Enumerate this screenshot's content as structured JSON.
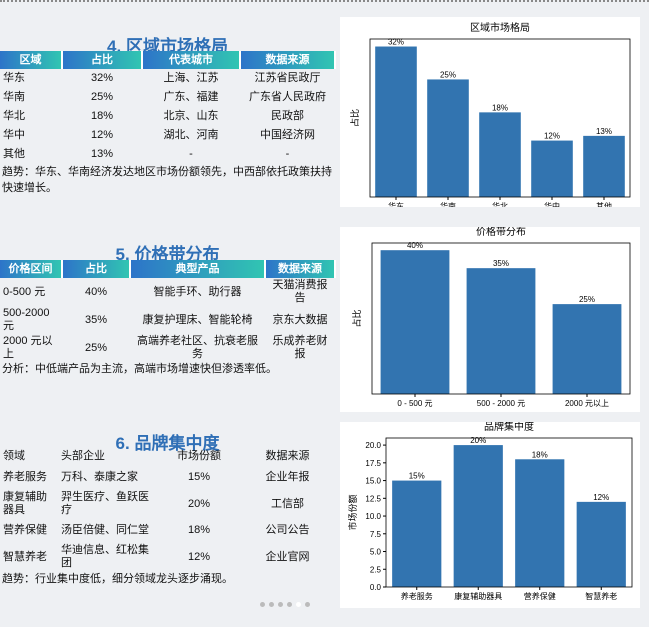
{
  "sections": [
    {
      "title": "4. 区域市场格局",
      "table": {
        "headers": [
          "区域",
          "占比",
          "代表城市",
          "数据来源"
        ],
        "rows": [
          [
            "华东",
            "32%",
            "上海、江苏",
            "江苏省民政厅"
          ],
          [
            "华南",
            "25%",
            "广东、福建",
            "广东省人民政府"
          ],
          [
            "华北",
            "18%",
            "北京、山东",
            "民政部"
          ],
          [
            "华中",
            "12%",
            "湖北、河南",
            "中国经济网"
          ],
          [
            "其他",
            "13%",
            "-",
            "-"
          ]
        ]
      },
      "note": "趋势：华东、华南经济发达地区市场份额领先，中西部依托政策扶持快速增长。",
      "chart": {
        "type": "bar",
        "title": "区域市场格局",
        "ylabel": "占比",
        "color": "#3274b0",
        "categories": [
          "华东",
          "华南",
          "华北",
          "华中",
          "其他"
        ],
        "values": [
          32,
          25,
          18,
          12,
          13
        ],
        "value_labels": [
          "32%",
          "25%",
          "18%",
          "12%",
          "13%"
        ],
        "ylim": [
          0,
          33.6
        ]
      }
    },
    {
      "title": "5. 价格带分布",
      "table": {
        "headers": [
          "价格区间",
          "占比",
          "典型产品",
          "数据来源"
        ],
        "rows": [
          [
            "0-500 元",
            "40%",
            "智能手环、助行器",
            "天猫消费报告"
          ],
          [
            "500-2000 元",
            "35%",
            "康复护理床、智能轮椅",
            "京东大数据"
          ],
          [
            "2000 元以上",
            "25%",
            "高端养老社区、抗衰老服务",
            "乐成养老财报"
          ]
        ]
      },
      "note": "分析：中低端产品为主流，高端市场增速快但渗透率低。",
      "chart": {
        "type": "bar",
        "title": "价格带分布",
        "ylabel": "占比",
        "color": "#3274b0",
        "categories": [
          "0 - 500 元",
          "500 - 2000 元",
          "2000 元以上"
        ],
        "values": [
          40,
          35,
          25
        ],
        "value_labels": [
          "40%",
          "35%",
          "25%"
        ],
        "ylim": [
          0,
          42
        ]
      }
    },
    {
      "title": "6. 品牌集中度",
      "table": {
        "headers": [
          "领域",
          "头部企业",
          "市场份额",
          "数据来源"
        ],
        "rows": [
          [
            "养老服务",
            "万科、泰康之家",
            "15%",
            "企业年报"
          ],
          [
            "康复辅助器具",
            "羿生医疗、鱼跃医疗",
            "20%",
            "工信部"
          ],
          [
            "营养保健",
            "汤臣倍健、同仁堂",
            "18%",
            "公司公告"
          ],
          [
            "智慧养老",
            "华迪信息、红松集团",
            "12%",
            "企业官网"
          ]
        ]
      },
      "note": "趋势：行业集中度低，细分领域龙头逐步涌现。",
      "chart": {
        "type": "bar",
        "title": "品牌集中度",
        "ylabel": "市场份额",
        "color": "#3274b0",
        "categories": [
          "养老服务",
          "康复辅助器具",
          "营养保健",
          "智慧养老"
        ],
        "values": [
          15,
          20,
          18,
          12
        ],
        "value_labels": [
          "15%",
          "20%",
          "18%",
          "12%"
        ],
        "ylim": [
          0,
          21
        ],
        "yticks": [
          {
            "value": 0,
            "label": "0.0"
          },
          {
            "value": 2.5,
            "label": "2.5"
          },
          {
            "value": 5,
            "label": "5.0"
          },
          {
            "value": 7.5,
            "label": "7.5"
          },
          {
            "value": 10,
            "label": "10.0"
          },
          {
            "value": 12.5,
            "label": "12.5"
          },
          {
            "value": 15,
            "label": "15.0"
          },
          {
            "value": 17.5,
            "label": "17.5"
          },
          {
            "value": 20,
            "label": "20.0"
          }
        ]
      }
    }
  ]
}
